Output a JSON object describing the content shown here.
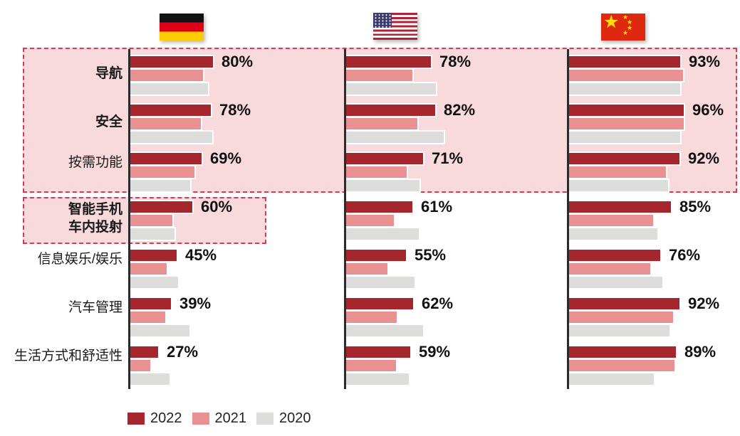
{
  "chart_data": {
    "type": "bar",
    "orientation": "horizontal",
    "unit": "%",
    "labeled_year": "2022",
    "legend": {
      "position": "bottom",
      "years": [
        "2022",
        "2021",
        "2020"
      ]
    },
    "colors": {
      "2022": "#A5262C",
      "2021": "#E89092",
      "2020": "#DDDDDC",
      "highlight_fill": "#F8D9DC",
      "highlight_border": "#D23C55",
      "axis": "#2B2B2B"
    },
    "categories": [
      {
        "label": "导航",
        "bold": true
      },
      {
        "label": "安全",
        "bold": true
      },
      {
        "label": "按需功能",
        "bold": false
      },
      {
        "label": "智能手机车内投射",
        "bold": true,
        "lines": [
          "智能手机",
          "车内投射"
        ]
      },
      {
        "label": "信息娱乐/娱乐",
        "bold": false
      },
      {
        "label": "汽车管理",
        "bold": false
      },
      {
        "label": "生活方式和舒适性",
        "bold": false
      }
    ],
    "countries": [
      {
        "name": "germany",
        "flag_icon": "germany-flag-icon",
        "series": [
          {
            "year": "2022",
            "labeled": true,
            "values": [
              80,
              78,
              69,
              60,
              45,
              39,
              27
            ]
          },
          {
            "year": "2021",
            "labeled": false,
            "values": [
              70,
              68,
              62,
              41,
              35,
              34,
              19
            ]
          },
          {
            "year": "2020",
            "labeled": false,
            "values": [
              75,
              79,
              58,
              43,
              46,
              57,
              38
            ]
          }
        ]
      },
      {
        "name": "usa",
        "flag_icon": "usa-flag-icon",
        "series": [
          {
            "year": "2022",
            "labeled": true,
            "values": [
              78,
              82,
              71,
              61,
              55,
              62,
              59
            ]
          },
          {
            "year": "2021",
            "labeled": false,
            "values": [
              61,
              66,
              56,
              44,
              38,
              47,
              46
            ]
          },
          {
            "year": "2020",
            "labeled": false,
            "values": [
              83,
              90,
              68,
              67,
              63,
              71,
              58
            ]
          }
        ]
      },
      {
        "name": "china",
        "flag_icon": "china-flag-icon",
        "series": [
          {
            "year": "2022",
            "labeled": true,
            "values": [
              93,
              96,
              92,
              85,
              76,
              92,
              89
            ]
          },
          {
            "year": "2021",
            "labeled": false,
            "values": [
              95,
              96,
              81,
              70,
              68,
              87,
              88
            ]
          },
          {
            "year": "2020",
            "labeled": false,
            "values": [
              93,
              93,
              83,
              74,
              78,
              84,
              71
            ]
          }
        ]
      }
    ],
    "highlights": [
      {
        "categories": [
          "导航",
          "安全",
          "按需功能"
        ],
        "countries": [
          "germany",
          "usa",
          "china"
        ]
      },
      {
        "categories": [
          "智能手机车内投射"
        ],
        "countries": [
          "germany"
        ]
      }
    ],
    "star_glyph": "★"
  }
}
